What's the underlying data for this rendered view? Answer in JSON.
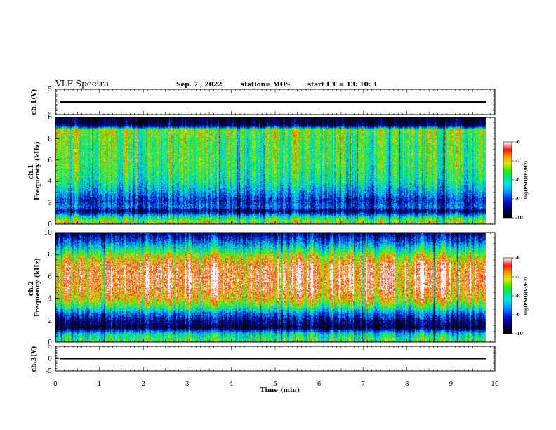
{
  "header": {
    "title": "VLF Spectra",
    "date": "Sep. 7 , 2022",
    "station": "station= MOS",
    "start_ut": "start  UT =   13: 10: 1"
  },
  "chart_data": [
    {
      "type": "line",
      "panel": "ch1-voltage",
      "ylabel": "ch.1(V)",
      "ylim": [
        -5,
        5
      ],
      "yticks": [
        "5",
        "-5"
      ],
      "xlim": [
        0,
        10
      ],
      "series": [
        {
          "x": [
            0.1,
            9.8
          ],
          "y": [
            0,
            0
          ]
        }
      ]
    },
    {
      "type": "heatmap",
      "panel": "ch1-spectrogram",
      "ylabel": "ch.1\nFrequency (kHz)",
      "ylim": [
        0,
        10
      ],
      "yticks": [
        "0",
        "2",
        "4",
        "6",
        "8",
        "10"
      ],
      "xlim": [
        0,
        10
      ],
      "data_end_min": 9.8,
      "intensity_profile": [
        {
          "f": 0.3,
          "v": 0.65
        },
        {
          "f": 0.7,
          "v": 0.45
        },
        {
          "f": 1.2,
          "v": 0.1
        },
        {
          "f": 1.6,
          "v": 0.3
        },
        {
          "f": 2.2,
          "v": 0.22
        },
        {
          "f": 3.0,
          "v": 0.36
        },
        {
          "f": 4.0,
          "v": 0.5
        },
        {
          "f": 5.0,
          "v": 0.55
        },
        {
          "f": 6.0,
          "v": 0.58
        },
        {
          "f": 7.0,
          "v": 0.58
        },
        {
          "f": 8.0,
          "v": 0.6
        },
        {
          "f": 8.8,
          "v": 0.66
        },
        {
          "f": 9.2,
          "v": 0.1
        },
        {
          "f": 9.9,
          "v": 0.02
        }
      ],
      "colorbar": {
        "label": "log(PSD)(V²/Hz)",
        "ticks": [
          "-6",
          "-7",
          "-8",
          "-9",
          "-10"
        ],
        "min": -10,
        "max": -6
      }
    },
    {
      "type": "heatmap",
      "panel": "ch2-spectrogram",
      "ylabel": "ch.2\nFrequency (kHz)",
      "ylim": [
        0,
        10
      ],
      "yticks": [
        "0",
        "2",
        "4",
        "6",
        "8",
        "10"
      ],
      "xlim": [
        0,
        10
      ],
      "data_end_min": 9.8,
      "intensity_profile": [
        {
          "f": 0.3,
          "v": 0.55
        },
        {
          "f": 0.8,
          "v": 0.42
        },
        {
          "f": 1.3,
          "v": 0.05
        },
        {
          "f": 2.0,
          "v": 0.15
        },
        {
          "f": 2.6,
          "v": 0.3
        },
        {
          "f": 3.2,
          "v": 0.55
        },
        {
          "f": 4.0,
          "v": 0.78
        },
        {
          "f": 5.0,
          "v": 0.88
        },
        {
          "f": 6.0,
          "v": 0.9
        },
        {
          "f": 7.0,
          "v": 0.86
        },
        {
          "f": 7.8,
          "v": 0.7
        },
        {
          "f": 8.5,
          "v": 0.48
        },
        {
          "f": 9.2,
          "v": 0.28
        },
        {
          "f": 9.9,
          "v": 0.12
        }
      ],
      "colorbar": {
        "label": "log(PSD)(V²/Hz)",
        "ticks": [
          "-6",
          "-7",
          "-8",
          "-9",
          "-10"
        ],
        "min": -10,
        "max": -6
      }
    },
    {
      "type": "line",
      "panel": "ch3-voltage",
      "ylabel": "ch.3(V)",
      "ylim": [
        -5,
        5
      ],
      "yticks": [
        "5",
        "0",
        "-5"
      ],
      "xlim": [
        0,
        10
      ],
      "series": [
        {
          "x": [
            0.1,
            9.8
          ],
          "y": [
            0,
            0
          ]
        }
      ]
    }
  ],
  "x_axis": {
    "label": "Time  (min)",
    "ticks": [
      "0",
      "1",
      "2",
      "3",
      "4",
      "5",
      "6",
      "7",
      "8",
      "9",
      "10"
    ]
  }
}
